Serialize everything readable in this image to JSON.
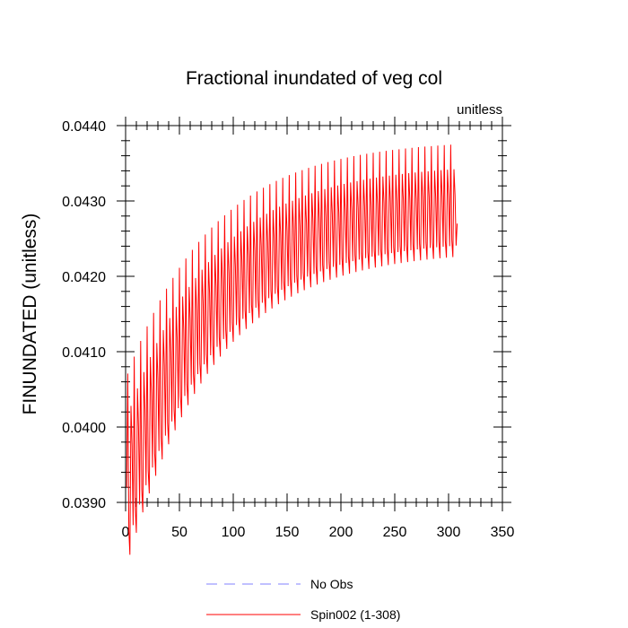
{
  "chart_data": {
    "type": "line",
    "title": "Fractional inundated of veg col",
    "units_label": "unitless",
    "ylabel": "FINUNDATED  (unitless)",
    "xlabel": "",
    "xlim": [
      0,
      350
    ],
    "ylim": [
      0.039,
      0.044
    ],
    "x_ticks": [
      "0",
      "50",
      "100",
      "150",
      "200",
      "250",
      "300",
      "350"
    ],
    "y_ticks": [
      "0.0390",
      "0.0400",
      "0.0410",
      "0.0420",
      "0.0430",
      "0.0440"
    ],
    "grid": false,
    "legend_position": "bottom",
    "series": [
      {
        "name": "No Obs",
        "color": "#8080ff",
        "style": "dashed",
        "values": []
      },
      {
        "name": "Spin002 (1-308)",
        "color": "#ff0000",
        "style": "solid",
        "x_range": [
          1,
          308
        ],
        "period": 6,
        "start_value": 0.0392,
        "seasonal_peak_steady": 0.04382,
        "seasonal_trough_steady": 0.04235,
        "secondary_peak_steady": 0.04348,
        "annual_mean_steady": 0.0431,
        "spinup_years_to_steady": 40,
        "end_value": 0.0427
      }
    ]
  }
}
